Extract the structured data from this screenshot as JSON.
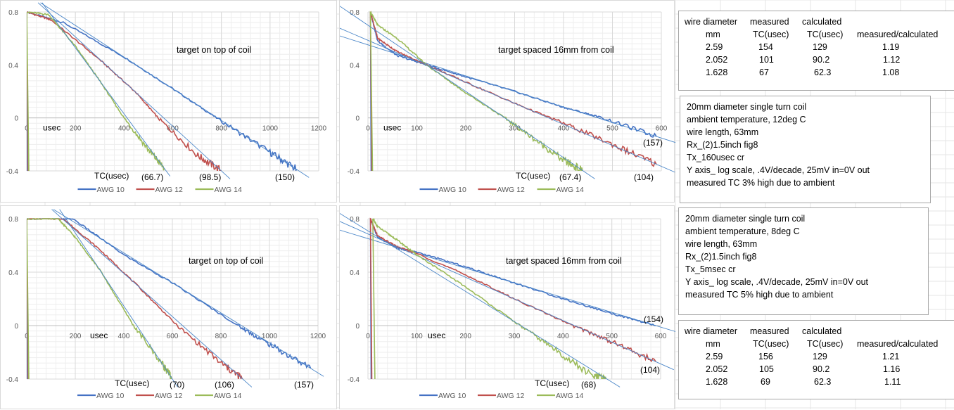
{
  "colors": {
    "awg10": "#4472c4",
    "awg12": "#c0504d",
    "awg14": "#9bbb59",
    "fit_line": "#4a86c8",
    "grid": "#d9d9d9",
    "axis_text": "#595959"
  },
  "chart_data": [
    {
      "type": "line",
      "id": "chart-top-left",
      "annotation": "target on top of coil",
      "xlabel": "usec",
      "xlim": [
        0,
        1200
      ],
      "xticks": [
        0,
        200,
        400,
        600,
        800,
        1000,
        1200
      ],
      "ylim": [
        -0.4,
        0.8
      ],
      "yticks": [
        0.8,
        0.4,
        0,
        -0.4
      ],
      "grid": true,
      "legend": "bottom",
      "tc_label": "TC(usec)",
      "series": [
        {
          "name": "AWG 10",
          "color_key": "awg10",
          "plateau_end": 150,
          "x": [
            0,
            150,
            400,
            600,
            780,
            1000,
            1110
          ],
          "y": [
            0.8,
            0.72,
            0.46,
            0.22,
            0.0,
            -0.26,
            -0.39
          ],
          "tc": "(150)"
        },
        {
          "name": "AWG 12",
          "color_key": "awg12",
          "plateau_end": 100,
          "x": [
            0,
            100,
            300,
            450,
            540,
            700,
            800
          ],
          "y": [
            0.8,
            0.74,
            0.44,
            0.19,
            0.0,
            -0.28,
            -0.4
          ],
          "tc": "(98.5)"
        },
        {
          "name": "AWG 14",
          "color_key": "awg14",
          "plateau_end": 90,
          "x": [
            0,
            90,
            200,
            300,
            400,
            500,
            565
          ],
          "y": [
            0.8,
            0.78,
            0.54,
            0.28,
            0.0,
            -0.24,
            -0.38
          ],
          "tc": "(66.7)"
        }
      ]
    },
    {
      "type": "line",
      "id": "chart-top-right",
      "annotation": "target spaced 16mm from coil",
      "xlabel": "usec",
      "xlim": [
        0,
        600
      ],
      "xticks": [
        0,
        100,
        200,
        300,
        400,
        500,
        600
      ],
      "ylim": [
        -0.4,
        0.8
      ],
      "yticks": [
        0.8,
        0.4,
        0,
        -0.4
      ],
      "grid": true,
      "legend": "bottom",
      "tc_label": "TC(usec)",
      "series": [
        {
          "name": "AWG 10",
          "color_key": "awg10",
          "x": [
            5,
            20,
            60,
            120,
            200,
            300,
            400,
            480,
            590
          ],
          "y": [
            0.8,
            0.58,
            0.47,
            0.4,
            0.31,
            0.2,
            0.08,
            0.0,
            -0.14
          ],
          "tc": "(157)"
        },
        {
          "name": "AWG 12",
          "color_key": "awg12",
          "x": [
            5,
            20,
            60,
            120,
            200,
            300,
            400,
            500,
            590
          ],
          "y": [
            0.8,
            0.6,
            0.5,
            0.4,
            0.27,
            0.11,
            -0.04,
            -0.2,
            -0.35
          ],
          "tc": "(104)"
        },
        {
          "name": "AWG 14",
          "color_key": "awg14",
          "x": [
            5,
            20,
            60,
            120,
            200,
            280,
            340,
            400,
            440
          ],
          "y": [
            0.8,
            0.7,
            0.6,
            0.4,
            0.19,
            0.0,
            -0.16,
            -0.32,
            -0.4
          ],
          "tc": "(67.4)"
        }
      ]
    },
    {
      "type": "line",
      "id": "chart-bottom-left",
      "annotation": "target on top of coil",
      "xlabel": "usec",
      "xlim": [
        0,
        1200
      ],
      "xticks": [
        0,
        200,
        400,
        600,
        800,
        1000,
        1200
      ],
      "ylim": [
        -0.4,
        0.8
      ],
      "yticks": [
        0.8,
        0.4,
        0,
        -0.4
      ],
      "grid": true,
      "legend": "bottom",
      "tc_label": "TC(usec)",
      "series": [
        {
          "name": "AWG 10",
          "color_key": "awg10",
          "x": [
            0,
            190,
            400,
            600,
            870,
            1000,
            1170
          ],
          "y": [
            0.8,
            0.8,
            0.53,
            0.32,
            0.0,
            -0.14,
            -0.32
          ],
          "tc": "(157)"
        },
        {
          "name": "AWG 12",
          "color_key": "awg12",
          "x": [
            0,
            150,
            300,
            450,
            620,
            800,
            890
          ],
          "y": [
            0.8,
            0.8,
            0.57,
            0.31,
            0.0,
            -0.28,
            -0.4
          ],
          "tc": "(106)"
        },
        {
          "name": "AWG 14",
          "color_key": "awg14",
          "x": [
            0,
            130,
            200,
            300,
            440,
            560,
            600
          ],
          "y": [
            0.8,
            0.8,
            0.66,
            0.42,
            0.0,
            -0.29,
            -0.4
          ],
          "tc": "(70)"
        }
      ]
    },
    {
      "type": "line",
      "id": "chart-bottom-right",
      "annotation": "target spaced 16mm from coil",
      "xlabel": "usec",
      "xlim": [
        0,
        600
      ],
      "xticks": [
        0,
        100,
        200,
        300,
        400,
        500,
        600
      ],
      "ylim": [
        -0.4,
        0.8
      ],
      "yticks": [
        0.8,
        0.4,
        0,
        -0.4
      ],
      "grid": true,
      "legend": "bottom",
      "tc_label": "TC(usec)",
      "series": [
        {
          "name": "AWG 10",
          "color_key": "awg10",
          "x": [
            5,
            20,
            60,
            100,
            200,
            300,
            400,
            500,
            590
          ],
          "y": [
            0.8,
            0.66,
            0.58,
            0.55,
            0.44,
            0.32,
            0.2,
            0.09,
            0.0
          ],
          "tc": "(154)"
        },
        {
          "name": "AWG 12",
          "color_key": "awg12",
          "x": [
            5,
            20,
            60,
            100,
            200,
            300,
            420,
            500,
            590
          ],
          "y": [
            0.8,
            0.67,
            0.59,
            0.54,
            0.38,
            0.2,
            0.0,
            -0.12,
            -0.27
          ],
          "tc": "(104)"
        },
        {
          "name": "AWG 14",
          "color_key": "awg14",
          "x": [
            10,
            20,
            60,
            100,
            200,
            300,
            380,
            460,
            490
          ],
          "y": [
            0.8,
            0.74,
            0.64,
            0.53,
            0.29,
            0.03,
            -0.17,
            -0.38,
            -0.4
          ],
          "tc": "(68)"
        }
      ]
    }
  ],
  "table1": {
    "header1": [
      "wire diameter",
      "measured",
      "calculated",
      ""
    ],
    "header2": [
      "mm",
      "TC(usec)",
      "TC(usec)",
      "measured/calculated"
    ],
    "rows": [
      [
        "2.59",
        "154",
        "129",
        "1.19"
      ],
      [
        "2.052",
        "101",
        "90.2",
        "1.12"
      ],
      [
        "1.628",
        "67",
        "62.3",
        "1.08"
      ]
    ]
  },
  "notes1": [
    "20mm diameter single turn coil",
    "ambient temperature, 12deg C",
    "wire length, 63mm",
    "Rx_(2)1.5inch fig8",
    "Tx_160usec cr",
    "Y axis_ log scale, .4V/decade, 25mV in=0V out",
    "measured TC 3% high due to ambient"
  ],
  "notes2": [
    "20mm diameter single turn coil",
    "ambient temperature, 8deg C",
    "wire length, 63mm",
    "Rx_(2)1.5inch fig8",
    "Tx_5msec cr",
    "Y axis_ log scale, .4V/decade, 25mV in=0V out",
    "measured TC 5% high due to ambient"
  ],
  "table2": {
    "header1": [
      "wire diameter",
      "measured",
      "calculated",
      ""
    ],
    "header2": [
      "mm",
      "TC(usec)",
      "TC(usec)",
      "measured/calculated"
    ],
    "rows": [
      [
        "2.59",
        "156",
        "129",
        "1.21"
      ],
      [
        "2.052",
        "105",
        "90.2",
        "1.16"
      ],
      [
        "1.628",
        "69",
        "62.3",
        "1.11"
      ]
    ]
  }
}
